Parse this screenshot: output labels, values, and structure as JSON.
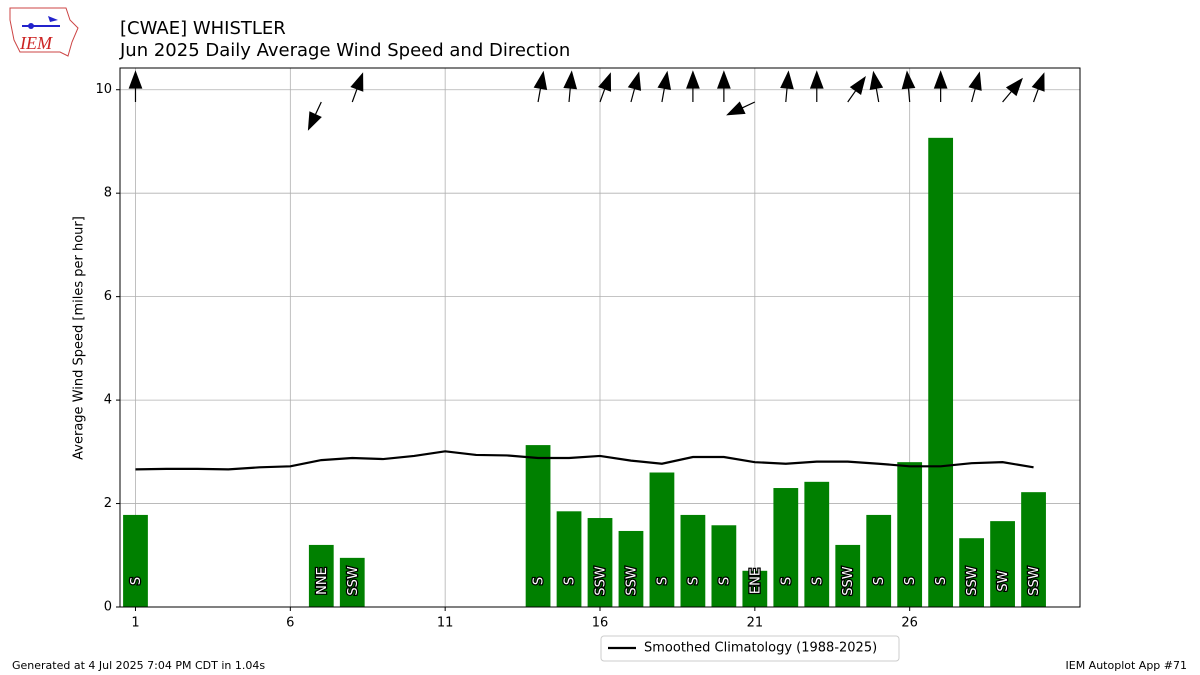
{
  "logo_text": "IEM",
  "footer_left": "Generated at 4 Jul 2025 7:04 PM CDT in 1.04s",
  "footer_right": "IEM Autoplot App #71",
  "chart_data": {
    "type": "bar",
    "title": "[CWAE] WHISTLER",
    "subtitle": "Jun 2025 Daily Average Wind Speed and Direction",
    "y_label": "Average Wind Speed [miles per hour]",
    "x": [
      1,
      2,
      3,
      4,
      5,
      6,
      7,
      8,
      9,
      10,
      11,
      12,
      13,
      14,
      15,
      16,
      17,
      18,
      19,
      20,
      21,
      22,
      23,
      24,
      25,
      26,
      27,
      28,
      29,
      30
    ],
    "values": [
      1.78,
      null,
      null,
      null,
      null,
      null,
      1.2,
      0.95,
      null,
      null,
      null,
      null,
      null,
      3.13,
      1.85,
      1.72,
      1.47,
      2.6,
      1.78,
      1.58,
      0.7,
      2.3,
      2.42,
      1.2,
      1.78,
      2.8,
      9.07,
      1.33,
      1.66,
      2.22
    ],
    "color": "#008000",
    "direction_labels": [
      "S",
      null,
      null,
      null,
      null,
      null,
      "NNE",
      "SSW",
      null,
      null,
      null,
      null,
      null,
      "S",
      "S",
      "SSW",
      "SSW",
      "S",
      "S",
      "S",
      "ENE",
      "S",
      "S",
      "SSW",
      "S",
      "S",
      "S",
      "SSW",
      "SW",
      "SSW"
    ],
    "direction_deg": [
      180,
      null,
      null,
      null,
      null,
      null,
      25,
      200,
      null,
      null,
      null,
      null,
      null,
      190,
      185,
      200,
      195,
      190,
      180,
      180,
      65,
      185,
      180,
      215,
      170,
      175,
      180,
      195,
      220,
      200
    ],
    "series": [
      {
        "name": "Smoothed Climatology (1988-2025)",
        "color": "#000000",
        "values": [
          2.66,
          2.67,
          2.67,
          2.66,
          2.7,
          2.72,
          2.84,
          2.88,
          2.86,
          2.92,
          3.01,
          2.94,
          2.93,
          2.88,
          2.88,
          2.92,
          2.83,
          2.77,
          2.9,
          2.9,
          2.8,
          2.77,
          2.81,
          2.81,
          2.77,
          2.72,
          2.72,
          2.78,
          2.8,
          2.7
        ]
      }
    ],
    "xlim": [
      0.5,
      31.5
    ],
    "ylim": [
      0,
      10.42
    ],
    "xticks": [
      1,
      6,
      11,
      16,
      21,
      26
    ],
    "yticks": [
      0,
      2,
      4,
      6,
      8,
      10
    ],
    "grid": true
  }
}
